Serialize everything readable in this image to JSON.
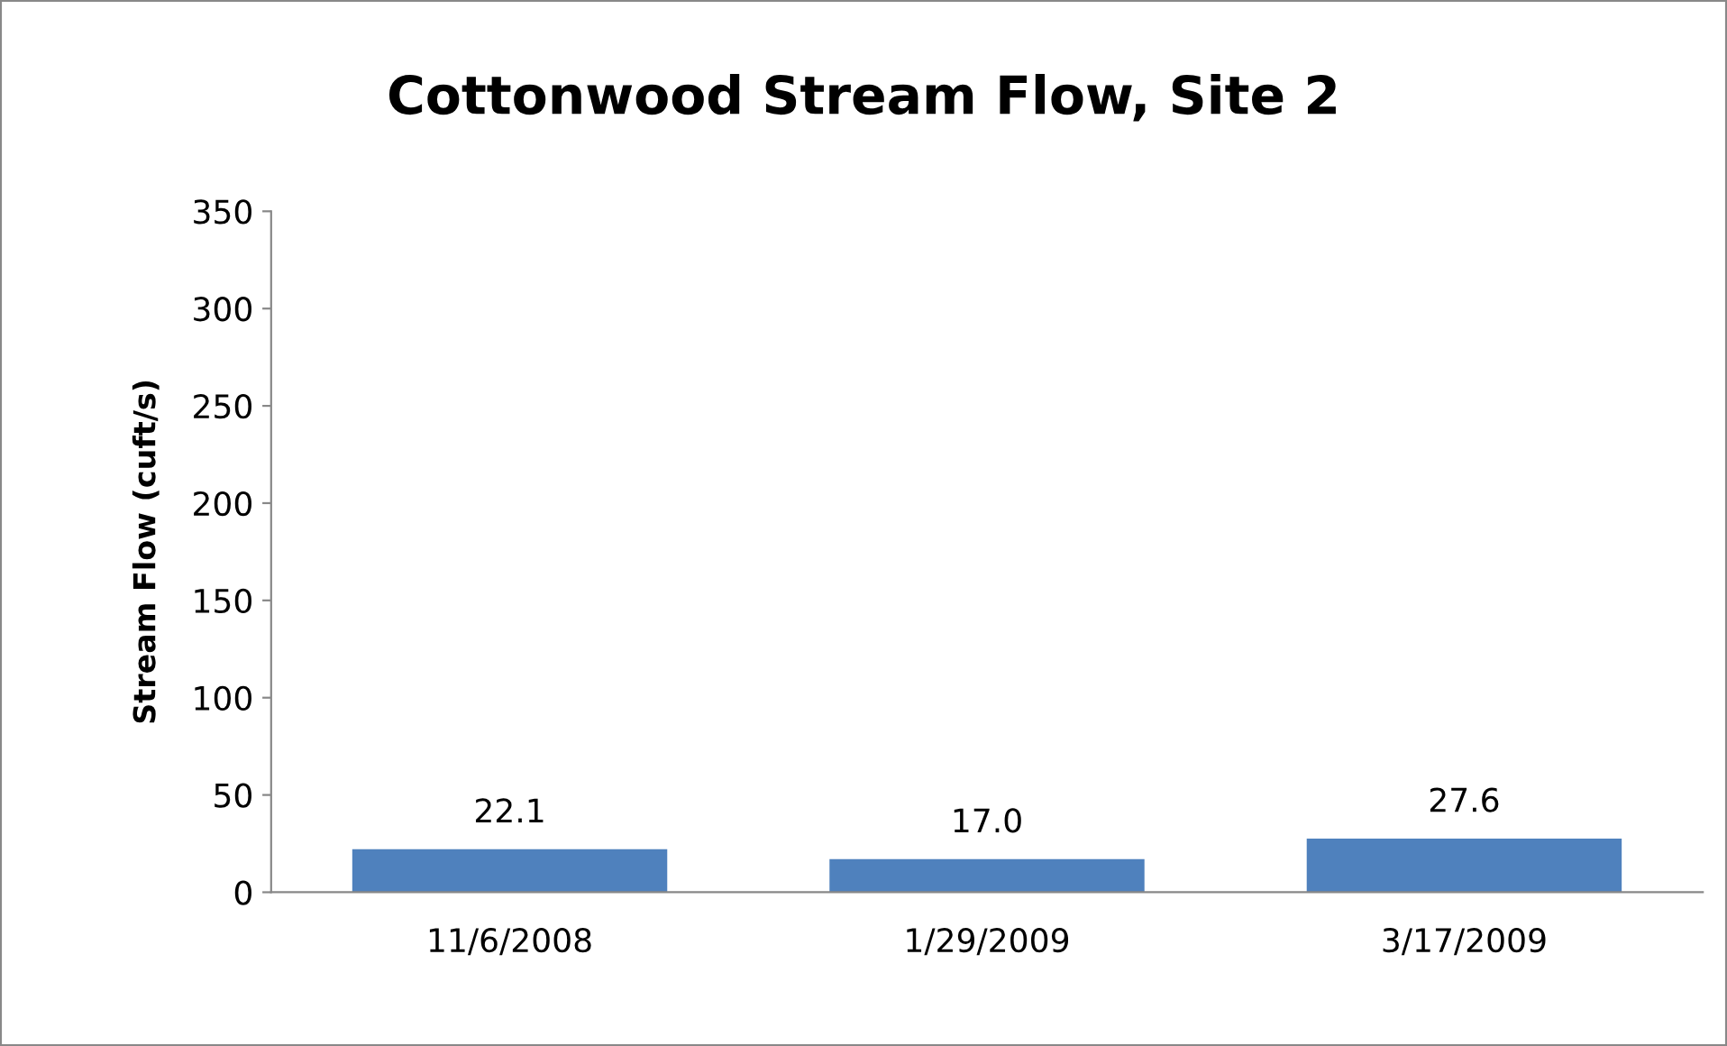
{
  "chart_data": {
    "type": "bar",
    "title": "Cottonwood Stream Flow, Site 2",
    "ylabel": "Stream Flow (cuft/s)",
    "categories": [
      "11/6/2008",
      "1/29/2009",
      "3/17/2009"
    ],
    "values": [
      22.1,
      17.0,
      27.6
    ],
    "color": "#4f81bd",
    "ylim": [
      0,
      350
    ],
    "yticks": [
      0,
      50,
      100,
      150,
      200,
      250,
      300,
      350
    ],
    "grid": false,
    "value_labels": [
      "22.1",
      "17.0",
      "27.6"
    ]
  }
}
